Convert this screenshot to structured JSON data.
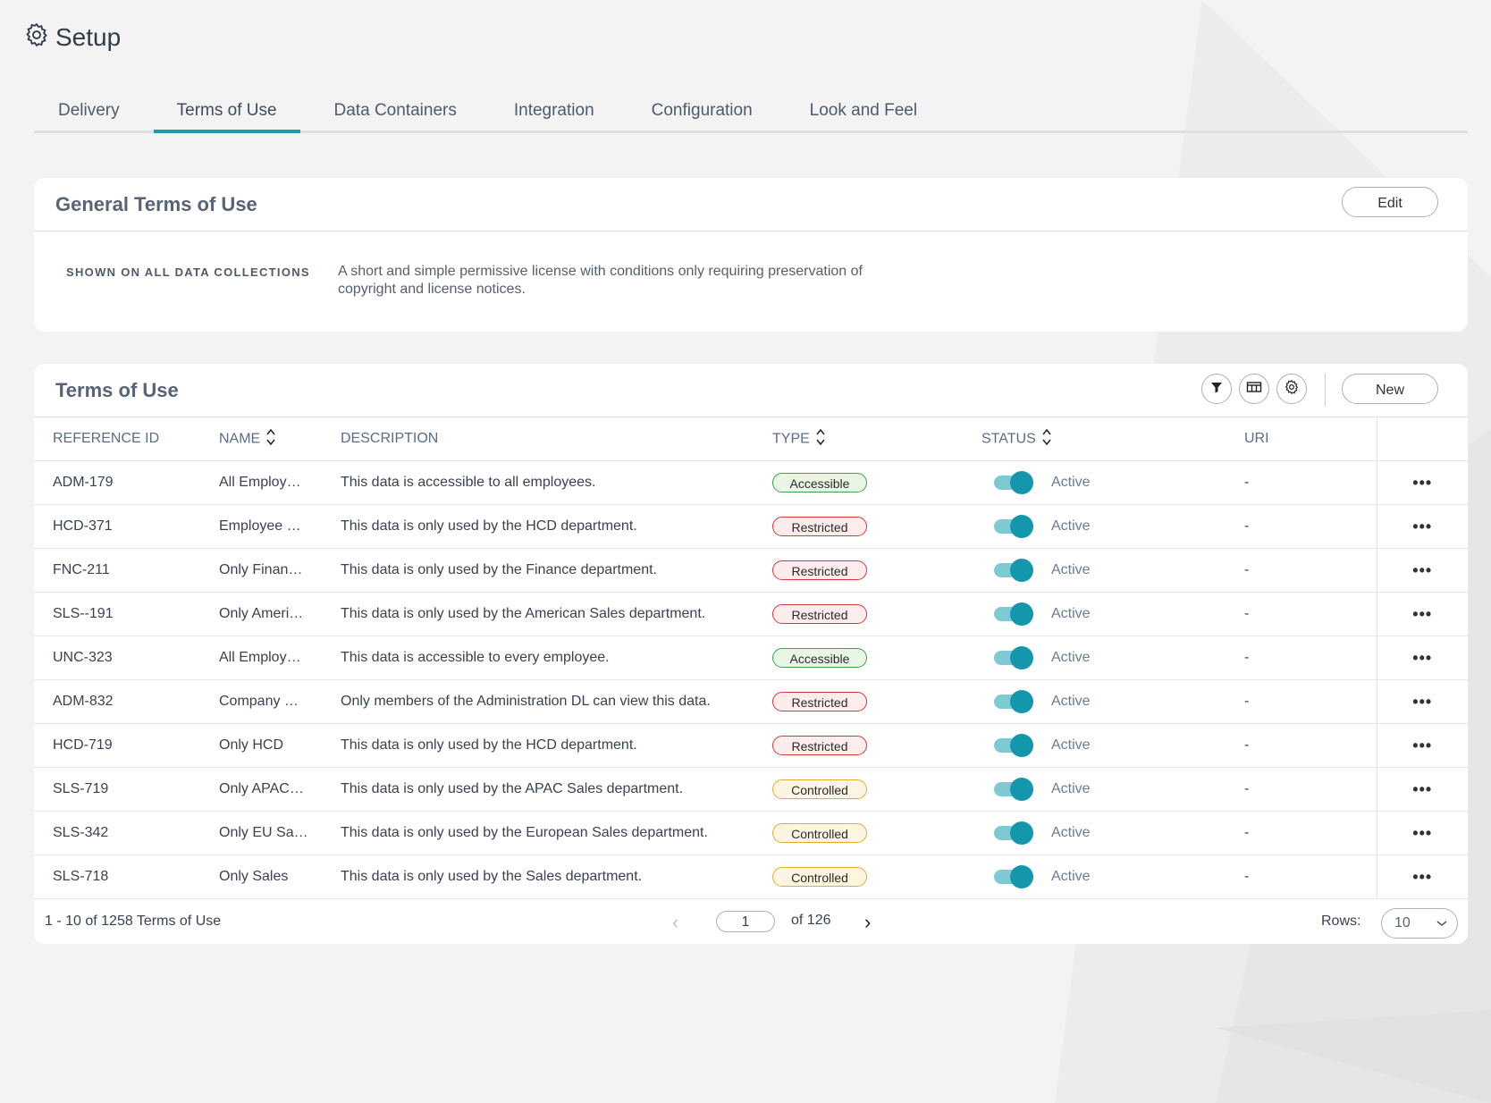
{
  "header": {
    "title": "Setup",
    "icon": "gear-icon"
  },
  "tabs": [
    {
      "label": "Delivery"
    },
    {
      "label": "Terms of Use",
      "active": true
    },
    {
      "label": "Data Containers"
    },
    {
      "label": "Integration"
    },
    {
      "label": "Configuration"
    },
    {
      "label": "Look and Feel"
    }
  ],
  "general": {
    "title": "General Terms of Use",
    "edit_label": "Edit",
    "label": "SHOWN ON ALL DATA COLLECTIONS",
    "text": "A short and simple permissive license with conditions only requiring preservation of copyright and license notices."
  },
  "terms": {
    "title": "Terms of Use",
    "new_label": "New",
    "toolbar_icons": [
      "filter-icon",
      "columns-icon",
      "gear-icon"
    ],
    "columns": {
      "ref": "REFERENCE ID",
      "name": "NAME",
      "desc": "DESCRIPTION",
      "type": "TYPE",
      "status": "STATUS",
      "uri": "URI"
    },
    "rows": [
      {
        "ref": "ADM-179",
        "name": "All Employ…",
        "desc": "This data is accessible to all employees.",
        "type": "Accessible",
        "status": "Active",
        "uri": "-"
      },
      {
        "ref": "HCD-371",
        "name": "Employee …",
        "desc": "This data is only used by the HCD department.",
        "type": "Restricted",
        "status": "Active",
        "uri": "-"
      },
      {
        "ref": "FNC-211",
        "name": "Only Finan…",
        "desc": "This data is only used by the Finance department.",
        "type": "Restricted",
        "status": "Active",
        "uri": "-"
      },
      {
        "ref": "SLS--191",
        "name": "Only Ameri…",
        "desc": "This data is only used by the American Sales department.",
        "type": "Restricted",
        "status": "Active",
        "uri": "-"
      },
      {
        "ref": "UNC-323",
        "name": "All Employ…",
        "desc": "This data is accessible to every employee.",
        "type": "Accessible",
        "status": "Active",
        "uri": "-"
      },
      {
        "ref": "ADM-832",
        "name": "Company …",
        "desc": "Only members of the Administration DL can view this data.",
        "type": "Restricted",
        "status": "Active",
        "uri": "-"
      },
      {
        "ref": "HCD-719",
        "name": "Only HCD",
        "desc": "This data is only used by the HCD department.",
        "type": "Restricted",
        "status": "Active",
        "uri": "-"
      },
      {
        "ref": "SLS-719",
        "name": "Only APAC…",
        "desc": "This data is only used by the APAC Sales department.",
        "type": "Controlled",
        "status": "Active",
        "uri": "-"
      },
      {
        "ref": "SLS-342",
        "name": "Only EU Sa…",
        "desc": "This data is only used by the European Sales department.",
        "type": "Controlled",
        "status": "Active",
        "uri": "-"
      },
      {
        "ref": "SLS-718",
        "name": "Only Sales",
        "desc": "This data is only used by the Sales department.",
        "type": "Controlled",
        "status": "Active",
        "uri": "-"
      }
    ],
    "row_action": "•••",
    "footer": {
      "range": "1 - 10 of 1258 Terms of Use",
      "page": "1",
      "of_pages": "of 126",
      "rows_label": "Rows:",
      "rows_value": "10"
    }
  },
  "colors": {
    "accent": "#1f9bb0",
    "accessible": "#3ba34b",
    "restricted": "#d9363e",
    "controlled": "#e2ad2c"
  }
}
